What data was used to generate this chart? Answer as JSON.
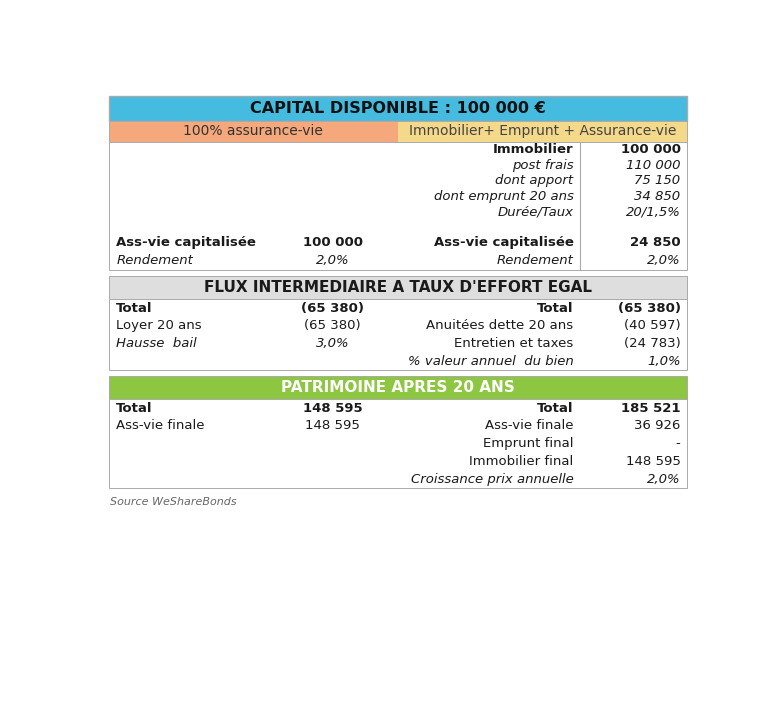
{
  "title": "CAPITAL DISPONIBLE : 100 000 €",
  "title_bg": "#45BCDF",
  "col1_header": "100% assurance-vie",
  "col2_header": "Immobilier+ Emprunt + Assurance-vie",
  "col1_header_bg": "#F4A87C",
  "col2_header_bg": "#F5D98B",
  "section1_rows": [
    [
      "",
      "",
      "Immobilier",
      "100 000",
      "bold",
      "bold"
    ],
    [
      "",
      "",
      "post frais",
      "110 000",
      "italic",
      "italic"
    ],
    [
      "",
      "",
      "dont apport",
      "75 150",
      "italic",
      "italic"
    ],
    [
      "",
      "",
      "dont emprunt 20 ans",
      "34 850",
      "italic",
      "italic"
    ],
    [
      "",
      "",
      "Durée/Taux",
      "20/1,5%",
      "italic",
      "italic"
    ]
  ],
  "section1_bottom_rows": [
    [
      "Ass-vie capitalisée",
      "100 000",
      "Ass-vie capitalisée",
      "24 850",
      "bold",
      "bold"
    ],
    [
      "Rendement",
      "2,0%",
      "Rendement",
      "2,0%",
      "italic",
      "italic"
    ]
  ],
  "section2_title": "FLUX INTERMEDIAIRE A TAUX D'EFFORT EGAL",
  "section2_bg": "#DEDEDE",
  "section2_rows": [
    [
      "Total",
      "(65 380)",
      "Total",
      "(65 380)",
      "bold",
      "bold"
    ],
    [
      "Loyer 20 ans",
      "(65 380)",
      "Anuitées dette 20 ans",
      "(40 597)",
      "normal",
      "normal"
    ],
    [
      "Hausse  bail",
      "3,0%",
      "Entretien et taxes",
      "(24 783)",
      "italic",
      "normal"
    ],
    [
      "",
      "",
      "% valeur annuel  du bien",
      "1,0%",
      "italic",
      "italic"
    ]
  ],
  "section3_title": "PATRIMOINE APRES 20 ANS",
  "section3_bg": "#8DC641",
  "section3_rows": [
    [
      "Total",
      "148 595",
      "Total",
      "185 521",
      "bold",
      "bold"
    ],
    [
      "Ass-vie finale",
      "148 595",
      "Ass-vie finale",
      "36 926",
      "normal",
      "normal"
    ],
    [
      "",
      "",
      "Emprunt final",
      "-",
      "normal",
      "normal"
    ],
    [
      "",
      "",
      "Immobilier final",
      "148 595",
      "normal",
      "normal"
    ],
    [
      "",
      "",
      "Croissance prix annuelle",
      "2,0%",
      "italic",
      "italic"
    ]
  ],
  "footer": "Source WeShareBonds",
  "outer_border": "#AAAAAA",
  "white": "#FFFFFF"
}
